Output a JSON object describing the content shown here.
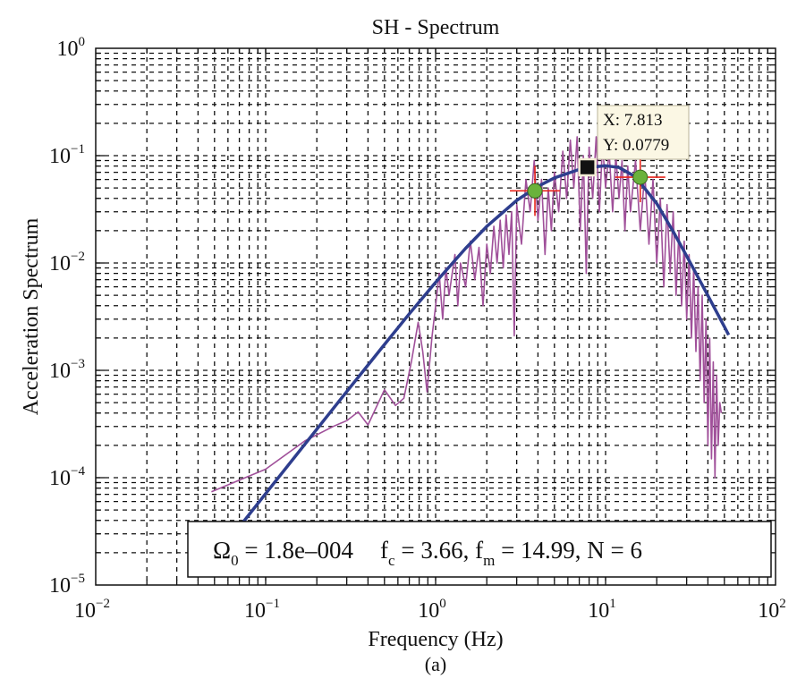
{
  "chart_data": {
    "type": "line",
    "title": "SH - Spectrum",
    "xlabel": "Frequency (Hz)",
    "ylabel": "Acceleration Spectrum",
    "caption": "(a)",
    "xscale": "log",
    "yscale": "log",
    "xlim": [
      0.01,
      100
    ],
    "ylim": [
      1e-05,
      1
    ],
    "grid": true,
    "x_ticks": [
      {
        "base": "10",
        "exp": "−2"
      },
      {
        "base": "10",
        "exp": "−1"
      },
      {
        "base": "10",
        "exp": "0"
      },
      {
        "base": "10",
        "exp": "1"
      },
      {
        "base": "10",
        "exp": "2"
      }
    ],
    "y_ticks": [
      {
        "base": "10",
        "exp": "0"
      },
      {
        "base": "10",
        "exp": "−1"
      },
      {
        "base": "10",
        "exp": "−2"
      },
      {
        "base": "10",
        "exp": "−3"
      },
      {
        "base": "10",
        "exp": "−4"
      },
      {
        "base": "10",
        "exp": "−5"
      }
    ],
    "colors": {
      "observed": "#a0509a",
      "fit": "#2e3e8e",
      "marker": "#6ab23c",
      "crosshair": "#e8251c",
      "datatip_bg": "#fbf7e4"
    },
    "series": [
      {
        "role": "observed",
        "points": [
          [
            0.048,
            7.4e-05
          ],
          [
            0.1,
            0.00012
          ],
          [
            0.17,
            0.00022
          ],
          [
            0.25,
            0.0003
          ],
          [
            0.3,
            0.00034
          ],
          [
            0.35,
            0.00041
          ],
          [
            0.4,
            0.00031
          ],
          [
            0.5,
            0.00066
          ],
          [
            0.58,
            0.00047
          ],
          [
            0.65,
            0.00055
          ],
          [
            0.72,
            0.0012
          ],
          [
            0.79,
            0.0028
          ],
          [
            0.84,
            0.0015
          ],
          [
            0.89,
            0.00063
          ],
          [
            0.95,
            0.002
          ],
          [
            1.0,
            0.004
          ],
          [
            1.05,
            0.008
          ],
          [
            1.1,
            0.003
          ],
          [
            1.15,
            0.009
          ],
          [
            1.2,
            0.005
          ],
          [
            1.3,
            0.012
          ],
          [
            1.35,
            0.004
          ],
          [
            1.4,
            0.01
          ],
          [
            1.5,
            0.006
          ],
          [
            1.6,
            0.016
          ],
          [
            1.7,
            0.007
          ],
          [
            1.8,
            0.014
          ],
          [
            1.9,
            0.004
          ],
          [
            2.0,
            0.015
          ],
          [
            2.1,
            0.008
          ],
          [
            2.2,
            0.022
          ],
          [
            2.3,
            0.01
          ],
          [
            2.4,
            0.025
          ],
          [
            2.5,
            0.009
          ],
          [
            2.6,
            0.028
          ],
          [
            2.7,
            0.012
          ],
          [
            2.8,
            0.03
          ],
          [
            2.9,
            0.0021
          ],
          [
            3.0,
            0.035
          ],
          [
            3.2,
            0.015
          ],
          [
            3.4,
            0.06
          ],
          [
            3.6,
            0.03
          ],
          [
            3.8,
            0.09
          ],
          [
            4.0,
            0.025
          ],
          [
            4.2,
            0.06
          ],
          [
            4.4,
            0.012
          ],
          [
            4.6,
            0.05
          ],
          [
            4.8,
            0.02
          ],
          [
            5.0,
            0.07
          ],
          [
            5.3,
            0.03
          ],
          [
            5.6,
            0.11
          ],
          [
            5.9,
            0.04
          ],
          [
            6.2,
            0.14
          ],
          [
            6.5,
            0.05
          ],
          [
            6.8,
            0.15
          ],
          [
            7.1,
            0.02
          ],
          [
            7.4,
            0.1
          ],
          [
            7.7,
            0.008
          ],
          [
            8.0,
            0.12
          ],
          [
            8.4,
            0.04
          ],
          [
            8.8,
            0.15
          ],
          [
            9.2,
            0.03
          ],
          [
            9.6,
            0.13
          ],
          [
            10,
            0.05
          ],
          [
            10.5,
            0.11
          ],
          [
            11,
            0.03
          ],
          [
            11.5,
            0.1
          ],
          [
            12,
            0.04
          ],
          [
            12.5,
            0.09
          ],
          [
            13,
            0.02
          ],
          [
            13.5,
            0.08
          ],
          [
            14,
            0.03
          ],
          [
            15,
            0.09
          ],
          [
            16,
            0.02
          ],
          [
            17,
            0.07
          ],
          [
            18,
            0.015
          ],
          [
            19,
            0.06
          ],
          [
            20,
            0.01
          ],
          [
            21,
            0.04
          ],
          [
            22,
            0.006
          ],
          [
            23,
            0.035
          ],
          [
            24,
            0.008
          ],
          [
            25,
            0.03
          ],
          [
            26,
            0.005
          ],
          [
            27,
            0.02
          ],
          [
            28,
            0.004
          ],
          [
            29,
            0.016
          ],
          [
            30,
            0.003
          ],
          [
            31,
            0.012
          ],
          [
            32,
            0.002
          ],
          [
            33,
            0.009
          ],
          [
            34,
            0.0015
          ],
          [
            35,
            0.006
          ],
          [
            36,
            0.0008
          ],
          [
            37,
            0.005
          ],
          [
            38,
            0.0005
          ],
          [
            39,
            0.003
          ],
          [
            40,
            0.0002
          ],
          [
            41,
            0.002
          ],
          [
            42,
            0.00015
          ],
          [
            43,
            0.0012
          ],
          [
            44,
            0.0001
          ],
          [
            45,
            0.0009
          ],
          [
            46,
            0.0002
          ],
          [
            47,
            0.0005
          ],
          [
            48,
            0.0004
          ]
        ]
      },
      {
        "role": "fit",
        "points": [
          [
            0.07,
            3.48e-05
          ],
          [
            0.1,
            7.1e-05
          ],
          [
            0.2,
            0.000283
          ],
          [
            0.3,
            0.000635
          ],
          [
            0.5,
            0.00174
          ],
          [
            0.7,
            0.00336
          ],
          [
            1,
            0.00661
          ],
          [
            1.5,
            0.0137
          ],
          [
            2,
            0.0219
          ],
          [
            3,
            0.0383
          ],
          [
            4,
            0.0518
          ],
          [
            5,
            0.062
          ],
          [
            7,
            0.0744
          ],
          [
            8,
            0.0778
          ],
          [
            10,
            0.0805
          ],
          [
            12,
            0.0776
          ],
          [
            15,
            0.0635
          ],
          [
            20,
            0.0358
          ],
          [
            25,
            0.0196
          ],
          [
            30,
            0.0116
          ],
          [
            40,
            0.00497
          ],
          [
            50,
            0.00255
          ],
          [
            53,
            0.00214
          ]
        ]
      }
    ],
    "markers": [
      {
        "role": "fc",
        "x": 3.84,
        "y": 0.047
      },
      {
        "role": "fm",
        "x": 16.0,
        "y": 0.063
      }
    ],
    "datatip": {
      "x": 7.813,
      "y": 0.0779,
      "x_label": "X: 7.813",
      "y_label": "Y: 0.0779"
    },
    "annotation": {
      "omega_sym": "Ω",
      "omega_sub": "0",
      "omega_val": " = 1.8e–004",
      "fc_sym": "f",
      "fc_sub": "c",
      "fc_val": " = 3.66, ",
      "fm_sym": "f",
      "fm_sub": "m",
      "fm_val": " = 14.99, N = 6"
    }
  }
}
